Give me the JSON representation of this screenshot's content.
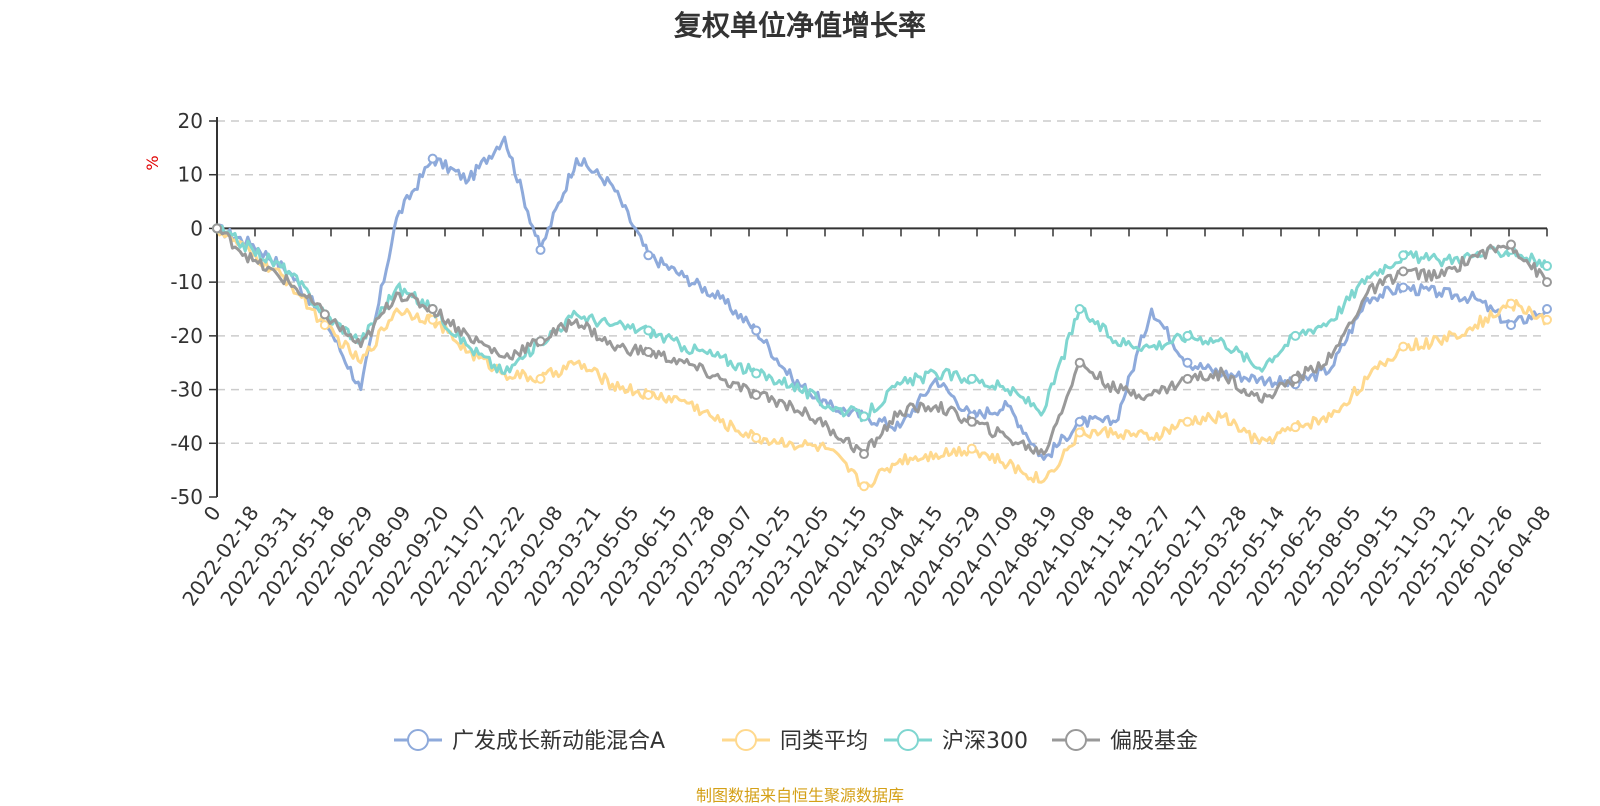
{
  "chart_data": {
    "type": "line",
    "title": "复权单位净值增长率",
    "ylabel": "%",
    "xlabel": "",
    "ylim": [
      -50,
      20
    ],
    "yticks": [
      20,
      10,
      0,
      -10,
      -20,
      -30,
      -40,
      -50
    ],
    "x_tick_labels": [
      "0",
      "2022-02-18",
      "2022-03-31",
      "2022-05-18",
      "2022-06-29",
      "2022-08-09",
      "2022-09-20",
      "2022-11-07",
      "2022-12-22",
      "2023-02-08",
      "2023-03-21",
      "2023-05-05",
      "2023-06-15",
      "2023-07-28",
      "2023-09-07",
      "2023-10-25",
      "2023-12-05",
      "2024-01-15",
      "2024-03-04",
      "2024-04-15",
      "2024-05-29",
      "2024-07-09",
      "2024-08-19",
      "2024-10-08",
      "2024-11-18",
      "2024-12-27",
      "2025-02-17",
      "2025-03-28",
      "2025-05-14",
      "2025-06-25",
      "2025-08-05",
      "2025-09-15",
      "2025-11-03",
      "2025-12-12",
      "2026-01-26",
      "2026-04-08"
    ],
    "grid": true,
    "legend_position": "bottom",
    "series": [
      {
        "name": "广发成长新动能混合A",
        "color": "#8eaadb",
        "values": [
          0,
          -3,
          -8,
          -17,
          -30,
          2,
          13,
          9,
          17,
          -4,
          13,
          8,
          -5,
          -9,
          -13,
          -19,
          -28,
          -33,
          -35,
          -37,
          -28,
          -35,
          -33,
          -43,
          -36,
          -36,
          -15,
          -25,
          -27,
          -28,
          -29,
          -26,
          -13,
          -11,
          -12,
          -13,
          -18,
          -15
        ]
      },
      {
        "name": "同类平均",
        "color": "#ffd98e",
        "values": [
          0,
          -5,
          -10,
          -18,
          -25,
          -15,
          -17,
          -23,
          -27,
          -28,
          -25,
          -29,
          -31,
          -32,
          -36,
          -39,
          -40,
          -41,
          -48,
          -43,
          -42,
          -41,
          -44,
          -47,
          -38,
          -38,
          -39,
          -36,
          -35,
          -40,
          -37,
          -35,
          -28,
          -22,
          -21,
          -18,
          -14,
          -17
        ]
      },
      {
        "name": "沪深300",
        "color": "#7fd6d0",
        "values": [
          0,
          -4,
          -8,
          -16,
          -21,
          -11,
          -15,
          -22,
          -27,
          -21,
          -16,
          -18,
          -19,
          -22,
          -24,
          -27,
          -29,
          -33,
          -35,
          -29,
          -27,
          -28,
          -30,
          -34,
          -15,
          -21,
          -22,
          -20,
          -21,
          -26,
          -20,
          -17,
          -9,
          -5,
          -6,
          -5,
          -4,
          -7
        ]
      },
      {
        "name": "偏股基金",
        "color": "#999999",
        "values": [
          0,
          -6,
          -10,
          -16,
          -22,
          -12,
          -15,
          -20,
          -24,
          -21,
          -17,
          -22,
          -23,
          -25,
          -28,
          -31,
          -33,
          -37,
          -42,
          -34,
          -33,
          -36,
          -39,
          -42,
          -25,
          -30,
          -31,
          -28,
          -27,
          -32,
          -28,
          -24,
          -12,
          -8,
          -9,
          -5,
          -3,
          -10
        ]
      }
    ]
  },
  "source_note": "制图数据来自恒生聚源数据库"
}
